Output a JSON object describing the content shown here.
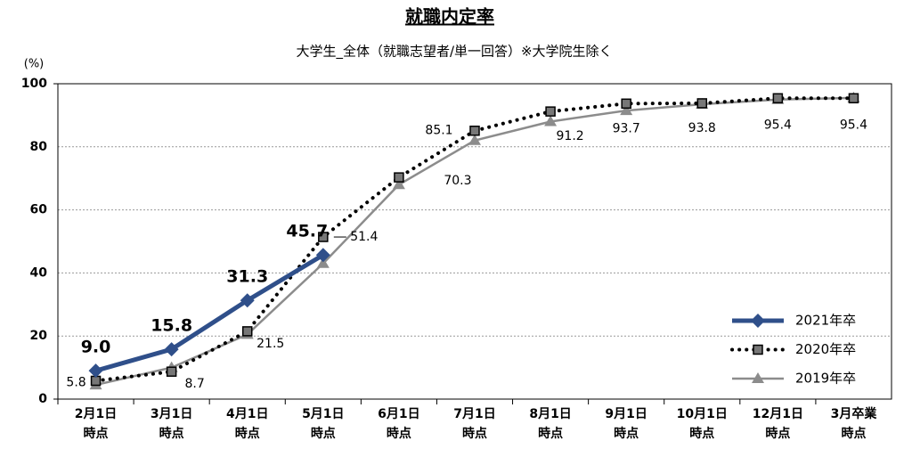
{
  "chart_data": {
    "type": "line",
    "title": "就職内定率",
    "subtitle": "大学生_全体（就職志望者/単一回答）※大学院生除く",
    "y_label": "(%)",
    "categories": [
      "2月1日\n時点",
      "3月1日\n時点",
      "4月1日\n時点",
      "5月1日\n時点",
      "6月1日\n時点",
      "7月1日\n時点",
      "8月1日\n時点",
      "9月1日\n時点",
      "10月1日\n時点",
      "12月1日\n時点",
      "3月卒業\n時点"
    ],
    "series": [
      {
        "name": "2021年卒",
        "color": "#2f4f8a",
        "style": "solid",
        "marker": "diamond",
        "values": [
          9.0,
          15.8,
          31.3,
          45.7,
          null,
          null,
          null,
          null,
          null,
          null,
          null
        ],
        "value_labels": [
          "9.0",
          "15.8",
          "31.3",
          "45.7",
          null,
          null,
          null,
          null,
          null,
          null,
          null
        ]
      },
      {
        "name": "2020年卒",
        "color": "#000000",
        "style": "dotted",
        "marker": "square",
        "values": [
          5.8,
          8.7,
          21.5,
          51.4,
          70.3,
          85.1,
          91.2,
          93.7,
          93.8,
          95.4,
          95.4
        ]
      },
      {
        "name": "2019年卒",
        "color": "#8c8c8c",
        "style": "solid",
        "marker": "triangle",
        "values": [
          4.5,
          10,
          20.5,
          43,
          68,
          82,
          88,
          91.5,
          93.5,
          95,
          95.5
        ]
      }
    ],
    "ylim": [
      0,
      100
    ],
    "yticks": [
      0,
      20,
      40,
      60,
      80,
      100
    ],
    "grid": true,
    "legend": "lower right"
  }
}
